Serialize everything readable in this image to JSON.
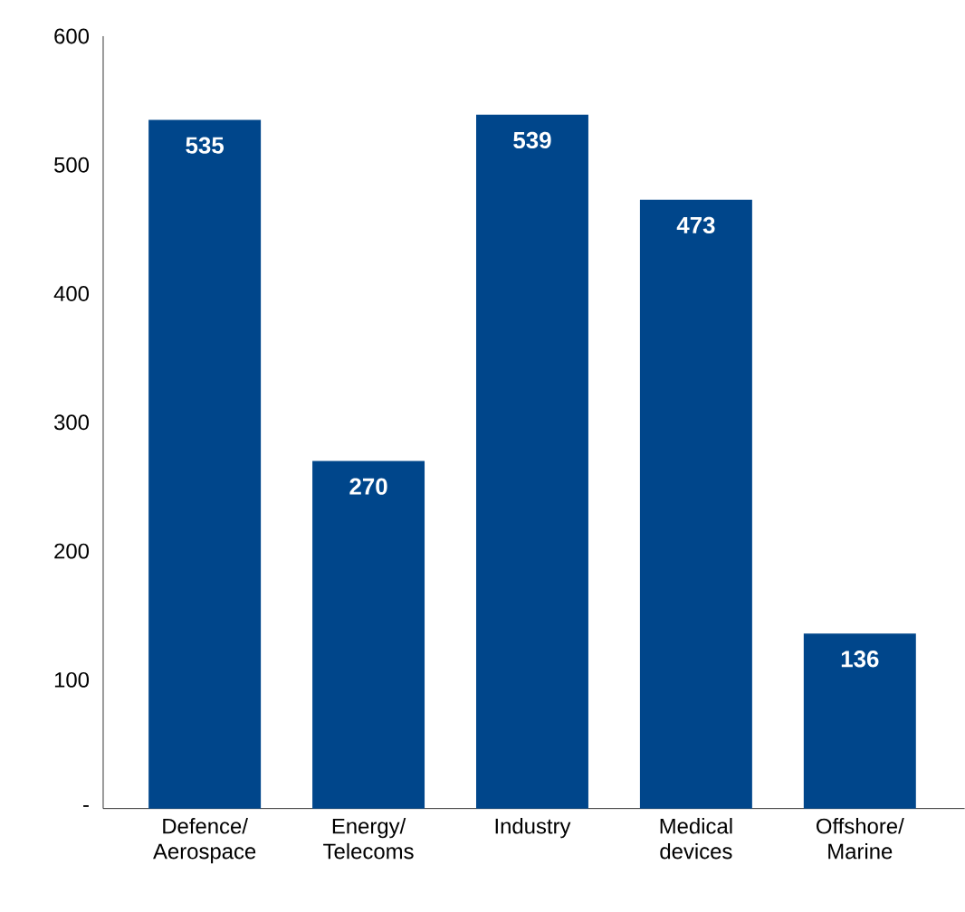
{
  "chart_data": {
    "type": "bar",
    "categories": [
      "Defence/ Aerospace",
      "Energy/ Telecoms",
      "Industry",
      "Medical devices",
      "Offshore/ Marine"
    ],
    "values": [
      535,
      270,
      539,
      473,
      136
    ],
    "color": "#00468b",
    "data_labels": true,
    "ylim": [
      0,
      600
    ],
    "yticks": [
      {
        "value": 0,
        "label": "-"
      },
      100,
      200,
      300,
      400,
      500,
      600
    ]
  }
}
